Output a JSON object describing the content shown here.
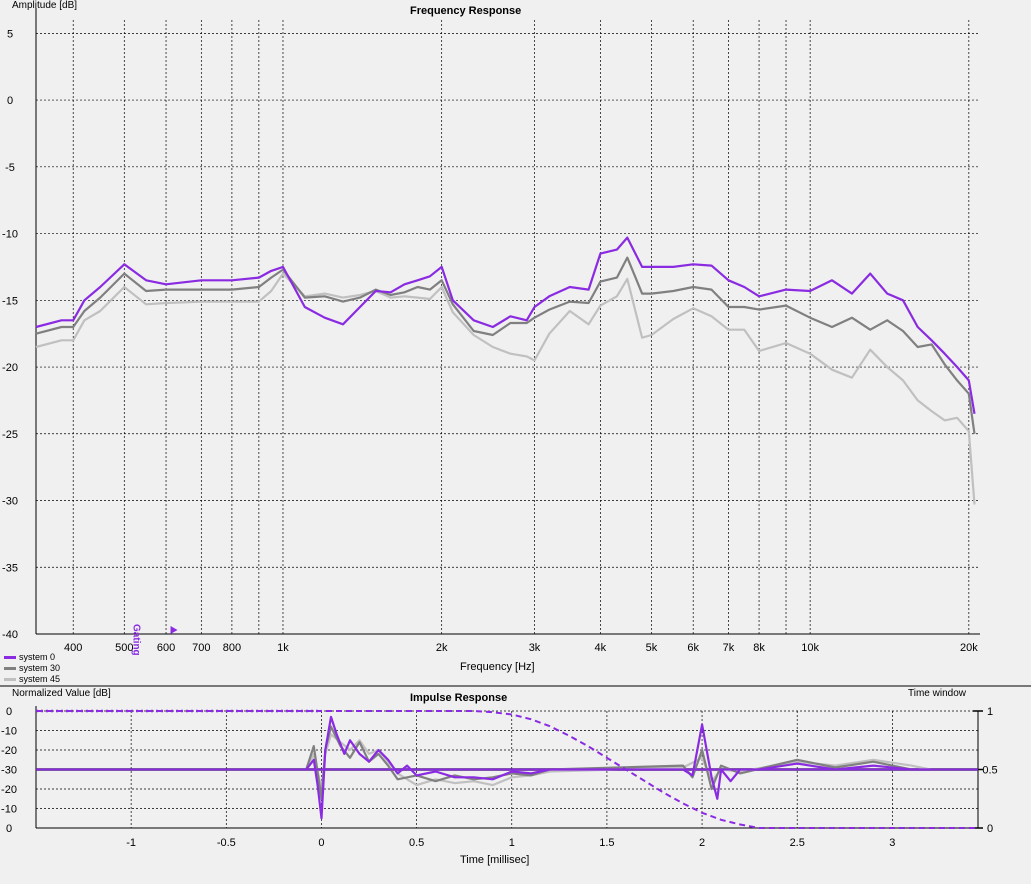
{
  "freq_chart": {
    "title": "Frequency Response",
    "ylabel": "Amplitude [dB]",
    "xlabel": "Frequency [Hz]",
    "marker_label": "Gating"
  },
  "impulse_chart": {
    "title": "Impulse Response",
    "ylabel": "Normalized Value [dB]",
    "xlabel": "Time [millisec]",
    "right_label": "Time window"
  },
  "legend": [
    {
      "name": "system 0",
      "color": "#8a2be2"
    },
    {
      "name": "system 30",
      "color": "#808080"
    },
    {
      "name": "system 45",
      "color": "#c0c0c0"
    }
  ],
  "chart_data": [
    {
      "type": "line",
      "title": "Frequency Response",
      "xlabel": "Frequency [Hz]",
      "ylabel": "Amplitude [dB]",
      "xscale": "log",
      "xlim": [
        340,
        21000
      ],
      "ylim": [
        -40,
        6
      ],
      "grid": true,
      "legend": "bottom-left",
      "xticks": [
        400,
        500,
        600,
        700,
        800,
        1000,
        2000,
        3000,
        4000,
        5000,
        6000,
        7000,
        8000,
        10000,
        20000
      ],
      "xticklabels": [
        "400",
        "500",
        "600",
        "700",
        "800",
        "1k",
        "2k",
        "3k",
        "4k",
        "5k",
        "6k",
        "7k",
        "8k",
        "10k",
        "20k"
      ],
      "yticks": [
        5,
        0,
        -5,
        -10,
        -15,
        -20,
        -25,
        -30,
        -35,
        -40
      ],
      "marker": {
        "label": "Gating",
        "x": 620
      },
      "series": [
        {
          "name": "system 0",
          "color": "#8a2be2",
          "x": [
            340,
            380,
            400,
            420,
            450,
            500,
            550,
            600,
            700,
            800,
            900,
            950,
            1000,
            1100,
            1200,
            1300,
            1400,
            1500,
            1600,
            1700,
            1800,
            1900,
            2000,
            2100,
            2300,
            2500,
            2700,
            2900,
            3000,
            3200,
            3500,
            3800,
            4000,
            4300,
            4500,
            4800,
            5000,
            5500,
            6000,
            6500,
            7000,
            7500,
            8000,
            9000,
            10000,
            11000,
            12000,
            13000,
            14000,
            15000,
            16000,
            17000,
            18000,
            19000,
            20000,
            20500
          ],
          "y": [
            -17,
            -16.5,
            -16.5,
            -15,
            -14,
            -12.3,
            -13.5,
            -13.8,
            -13.5,
            -13.5,
            -13.3,
            -12.8,
            -12.5,
            -15.5,
            -16.3,
            -16.8,
            -15.5,
            -14.3,
            -14.4,
            -13.8,
            -13.5,
            -13.2,
            -12.5,
            -15,
            -16.5,
            -17,
            -16.2,
            -16.5,
            -15.5,
            -14.7,
            -14,
            -14.2,
            -11.5,
            -11.2,
            -10.3,
            -12.5,
            -12.5,
            -12.5,
            -12.3,
            -12.4,
            -13.5,
            -14,
            -14.7,
            -14.2,
            -14.3,
            -13.5,
            -14.5,
            -13,
            -14.5,
            -15,
            -17,
            -18,
            -19,
            -20,
            -21,
            -23.5
          ]
        },
        {
          "name": "system 30",
          "color": "#808080",
          "x": [
            340,
            380,
            400,
            420,
            450,
            500,
            550,
            600,
            700,
            800,
            900,
            950,
            1000,
            1100,
            1200,
            1300,
            1400,
            1500,
            1600,
            1700,
            1800,
            1900,
            2000,
            2100,
            2300,
            2500,
            2700,
            2900,
            3000,
            3200,
            3500,
            3800,
            4000,
            4300,
            4500,
            4800,
            5000,
            5500,
            6000,
            6500,
            7000,
            7500,
            8000,
            9000,
            10000,
            11000,
            12000,
            13000,
            14000,
            15000,
            16000,
            17000,
            18000,
            19000,
            20000,
            20500
          ],
          "y": [
            -17.5,
            -17,
            -17,
            -15.8,
            -14.8,
            -13,
            -14.3,
            -14.2,
            -14.2,
            -14.2,
            -14.0,
            -13.3,
            -12.7,
            -14.8,
            -14.7,
            -15.1,
            -14.8,
            -14.2,
            -14.6,
            -14.4,
            -14.0,
            -14.2,
            -13.5,
            -15.3,
            -17.3,
            -17.6,
            -16.7,
            -16.7,
            -16.3,
            -15.7,
            -15.1,
            -15.2,
            -13.6,
            -13.3,
            -11.8,
            -14.5,
            -14.5,
            -14.3,
            -14.0,
            -14.2,
            -15.5,
            -15.5,
            -15.7,
            -15.4,
            -16.3,
            -17.0,
            -16.3,
            -17.2,
            -16.5,
            -17.3,
            -18.5,
            -18.3,
            -19.8,
            -21.0,
            -22.0,
            -25.0
          ]
        },
        {
          "name": "system 45",
          "color": "#c0c0c0",
          "x": [
            340,
            380,
            400,
            420,
            450,
            500,
            550,
            600,
            700,
            800,
            900,
            950,
            1000,
            1100,
            1200,
            1300,
            1400,
            1500,
            1600,
            1700,
            1800,
            1900,
            2000,
            2100,
            2300,
            2500,
            2700,
            2900,
            3000,
            3200,
            3500,
            3800,
            4000,
            4300,
            4500,
            4800,
            5000,
            5500,
            6000,
            6500,
            7000,
            7500,
            8000,
            9000,
            10000,
            11000,
            12000,
            13000,
            14000,
            15000,
            16000,
            17000,
            18000,
            19000,
            20000,
            20500
          ],
          "y": [
            -18.5,
            -18,
            -18,
            -16.5,
            -15.8,
            -14,
            -15.3,
            -15.2,
            -15.1,
            -15.1,
            -15.1,
            -14.3,
            -13.0,
            -14.7,
            -14.5,
            -14.8,
            -14.6,
            -14.3,
            -14.8,
            -14.7,
            -14.8,
            -14.9,
            -14.0,
            -15.9,
            -17.6,
            -18.5,
            -19,
            -19.2,
            -19.5,
            -17.5,
            -15.8,
            -16.8,
            -15.4,
            -14.7,
            -13.4,
            -17.8,
            -17.6,
            -16.4,
            -15.6,
            -16.2,
            -17.2,
            -17.2,
            -18.8,
            -18.2,
            -19.0,
            -20.2,
            -20.8,
            -18.7,
            -20.0,
            -21.0,
            -22.5,
            -23.3,
            -24.0,
            -23.8,
            -24.8,
            -30.3
          ]
        }
      ]
    },
    {
      "type": "line",
      "title": "Impulse Response",
      "xlabel": "Time [millisec]",
      "ylabel": "Normalized Value [dB]",
      "xlim": [
        -1.5,
        3.45
      ],
      "grid": true,
      "xticks": [
        -1,
        -0.5,
        0,
        0.5,
        1,
        1.5,
        2,
        2.5,
        3
      ],
      "xticklabels": [
        "-1",
        "-0.5",
        "0",
        "0.5",
        "1",
        "1.5",
        "2",
        "2.5",
        "3"
      ],
      "yticklabels": [
        "0",
        "-10",
        "-20",
        "-30",
        "-20",
        "-10",
        "0"
      ],
      "right_label": "Time window",
      "right_yticks": [
        1,
        0.5,
        0
      ],
      "right_yticklabels": [
        "1",
        "0.5",
        "0"
      ],
      "series": [
        {
          "name": "system 0",
          "color": "#8a2be2",
          "x": [
            -0.08,
            -0.04,
            -0.02,
            0.0,
            0.02,
            0.05,
            0.08,
            0.12,
            0.15,
            0.2,
            0.25,
            0.3,
            0.35,
            0.4,
            0.45,
            0.5,
            0.6,
            0.7,
            0.8,
            0.9,
            1.0,
            1.1,
            1.2,
            1.9,
            1.95,
            2.0,
            2.05,
            2.08,
            2.1,
            2.15,
            2.2,
            2.3,
            2.5,
            2.7,
            2.9,
            3.1,
            3.2
          ],
          "y": [
            -30,
            -25,
            -38,
            -55,
            -20,
            -3,
            -12,
            -22,
            -15,
            -22,
            -26,
            -20,
            -25,
            -32,
            -28,
            -33,
            -31,
            -34,
            -34,
            -35,
            -31,
            -32,
            -30,
            -30,
            -33,
            -7,
            -34,
            -45,
            -30,
            -36,
            -30,
            -30,
            -27,
            -30,
            -28,
            -30,
            -30
          ]
        },
        {
          "name": "system 30",
          "color": "#808080",
          "x": [
            -0.08,
            -0.04,
            0.0,
            0.02,
            0.05,
            0.1,
            0.15,
            0.2,
            0.25,
            0.3,
            0.35,
            0.4,
            0.5,
            0.6,
            0.7,
            0.8,
            0.9,
            1.0,
            1.1,
            1.2,
            1.9,
            1.95,
            2.0,
            2.05,
            2.1,
            2.2,
            2.5,
            2.7,
            2.9,
            3.1,
            3.2
          ],
          "y": [
            -30,
            -18,
            -45,
            -20,
            -8,
            -18,
            -24,
            -16,
            -26,
            -22,
            -28,
            -35,
            -33,
            -36,
            -33,
            -35,
            -34,
            -32,
            -33,
            -30,
            -28,
            -34,
            -20,
            -40,
            -28,
            -32,
            -25,
            -29,
            -26,
            -30,
            -30
          ]
        },
        {
          "name": "system 45",
          "color": "#c0c0c0",
          "x": [
            -0.08,
            -0.04,
            0.0,
            0.02,
            0.05,
            0.1,
            0.15,
            0.2,
            0.25,
            0.3,
            0.35,
            0.4,
            0.5,
            0.6,
            0.7,
            0.8,
            0.9,
            1.0,
            1.1,
            1.2,
            1.9,
            2.0,
            2.05,
            2.1,
            2.2,
            2.5,
            2.7,
            2.9,
            3.1,
            3.2
          ],
          "y": [
            -30,
            -22,
            -40,
            -22,
            -12,
            -16,
            -20,
            -15,
            -22,
            -20,
            -26,
            -32,
            -38,
            -35,
            -37,
            -36,
            -38,
            -34,
            -33,
            -31,
            -29,
            -24,
            -36,
            -30,
            -31,
            -26,
            -28,
            -25,
            -28,
            -30
          ]
        },
        {
          "name": "time window",
          "color": "#8a2be2",
          "style": "dashed",
          "x": [
            -1.5,
            0.8,
            0.9,
            1.0,
            1.1,
            1.2,
            1.3,
            1.4,
            1.5,
            1.6,
            1.7,
            1.8,
            1.9,
            2.0,
            2.1,
            2.2,
            2.3,
            3.45
          ],
          "window": [
            1,
            1,
            0.99,
            0.97,
            0.93,
            0.87,
            0.79,
            0.7,
            0.6,
            0.5,
            0.4,
            0.3,
            0.21,
            0.13,
            0.07,
            0.03,
            0,
            0
          ]
        }
      ]
    }
  ]
}
